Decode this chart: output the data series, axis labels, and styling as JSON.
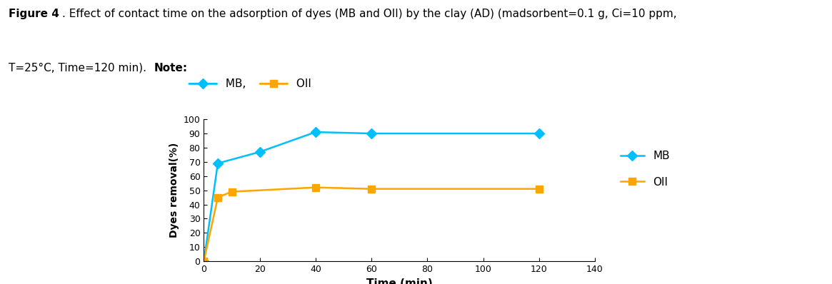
{
  "mb_x": [
    0,
    5,
    20,
    40,
    60,
    120
  ],
  "mb_y": [
    0,
    69,
    77,
    91,
    90,
    90
  ],
  "oii_x": [
    0,
    5,
    10,
    40,
    60,
    120
  ],
  "oii_y": [
    0,
    45,
    49,
    52,
    51,
    51
  ],
  "mb_color": "#00BFFF",
  "oii_color": "#FFA500",
  "xlabel": "Time (min)",
  "ylabel": "Dyes removal(%)",
  "xlim": [
    0,
    140
  ],
  "ylim": [
    0,
    100
  ],
  "xticks": [
    0,
    20,
    40,
    60,
    80,
    100,
    120,
    140
  ],
  "yticks": [
    0,
    10,
    20,
    30,
    40,
    50,
    60,
    70,
    80,
    90,
    100
  ],
  "legend_mb": "MB",
  "legend_oii": "OII",
  "title_bold": "Figure 4",
  "title_normal": ". Effect of contact time on the adsorption of dyes (MB and OII) by the clay (AD) (madsorbent=0.1 g, Ci=10 ppm,",
  "title_line2_pre": "T=25°C, Time=120 min). ",
  "title_note": "Note:",
  "figsize": [
    11.65,
    3.98
  ],
  "dpi": 100
}
